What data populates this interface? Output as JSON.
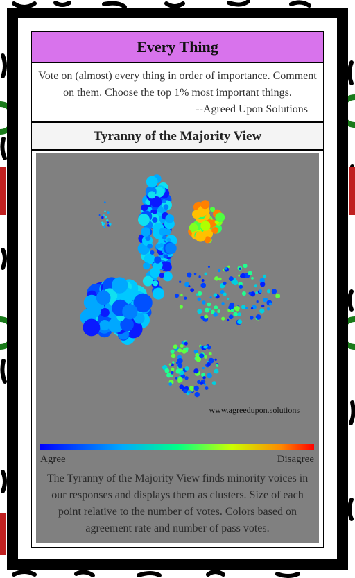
{
  "header": {
    "title": "Every Thing"
  },
  "intro": {
    "text": "Vote on (almost) every thing in order of importance. Comment on them. Choose the top 1% most important things.",
    "attribution": "--Agreed Upon Solutions"
  },
  "section": {
    "title": "Tyranny of the Majority View"
  },
  "visualization": {
    "watermark": "www.agreedupon.solutions",
    "legend_low": "Agree",
    "legend_high": "Disagree",
    "caption": "The Tyranny of the Majority View finds minority voices in our responses and displays them as clusters. Size of each point relative to the number of votes. Colors based on agreement rate and number of pass votes."
  }
}
